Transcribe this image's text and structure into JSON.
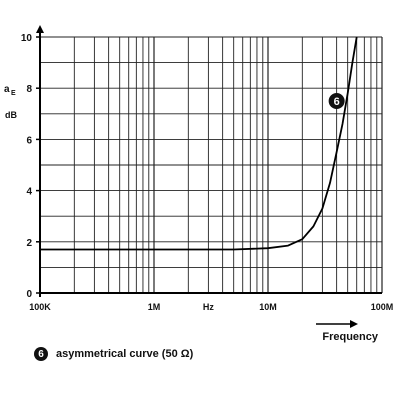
{
  "chart_data": {
    "type": "line",
    "x_scale": "log",
    "xlim": [
      100000,
      100000000
    ],
    "ylim": [
      0,
      10
    ],
    "grid": true,
    "ylabel_main": "a",
    "ylabel_sub": "E",
    "yunit": "dB",
    "yticks": [
      {
        "value": 0,
        "label": "0"
      },
      {
        "value": 2,
        "label": "2"
      },
      {
        "value": 4,
        "label": "4"
      },
      {
        "value": 6,
        "label": "6"
      },
      {
        "value": 8,
        "label": "8"
      },
      {
        "value": 10,
        "label": "10"
      }
    ],
    "xticks": [
      {
        "value": 100000,
        "label": "100K"
      },
      {
        "value": 1000000,
        "label": "1M"
      },
      {
        "value": 10000000,
        "label": "10M"
      },
      {
        "value": 100000000,
        "label": "100M"
      }
    ],
    "xunit": "Hz",
    "xunit_at": 3000000,
    "xlabel": "Frequency",
    "series": [
      {
        "name": "asymmetrical curve (50 Ω)",
        "marker": "6",
        "marker_at": {
          "x": 40000000,
          "y": 7.5
        },
        "x": [
          100000,
          1000000,
          5000000,
          10000000,
          15000000,
          20000000,
          25000000,
          30000000,
          35000000,
          40000000,
          45000000,
          50000000,
          55000000,
          60000000
        ],
        "y": [
          1.7,
          1.7,
          1.7,
          1.75,
          1.85,
          2.1,
          2.6,
          3.3,
          4.3,
          5.5,
          6.6,
          7.8,
          9.0,
          10.0
        ]
      }
    ]
  },
  "legend": {
    "marker": "6",
    "label": "asymmetrical  curve (50 Ω)"
  }
}
